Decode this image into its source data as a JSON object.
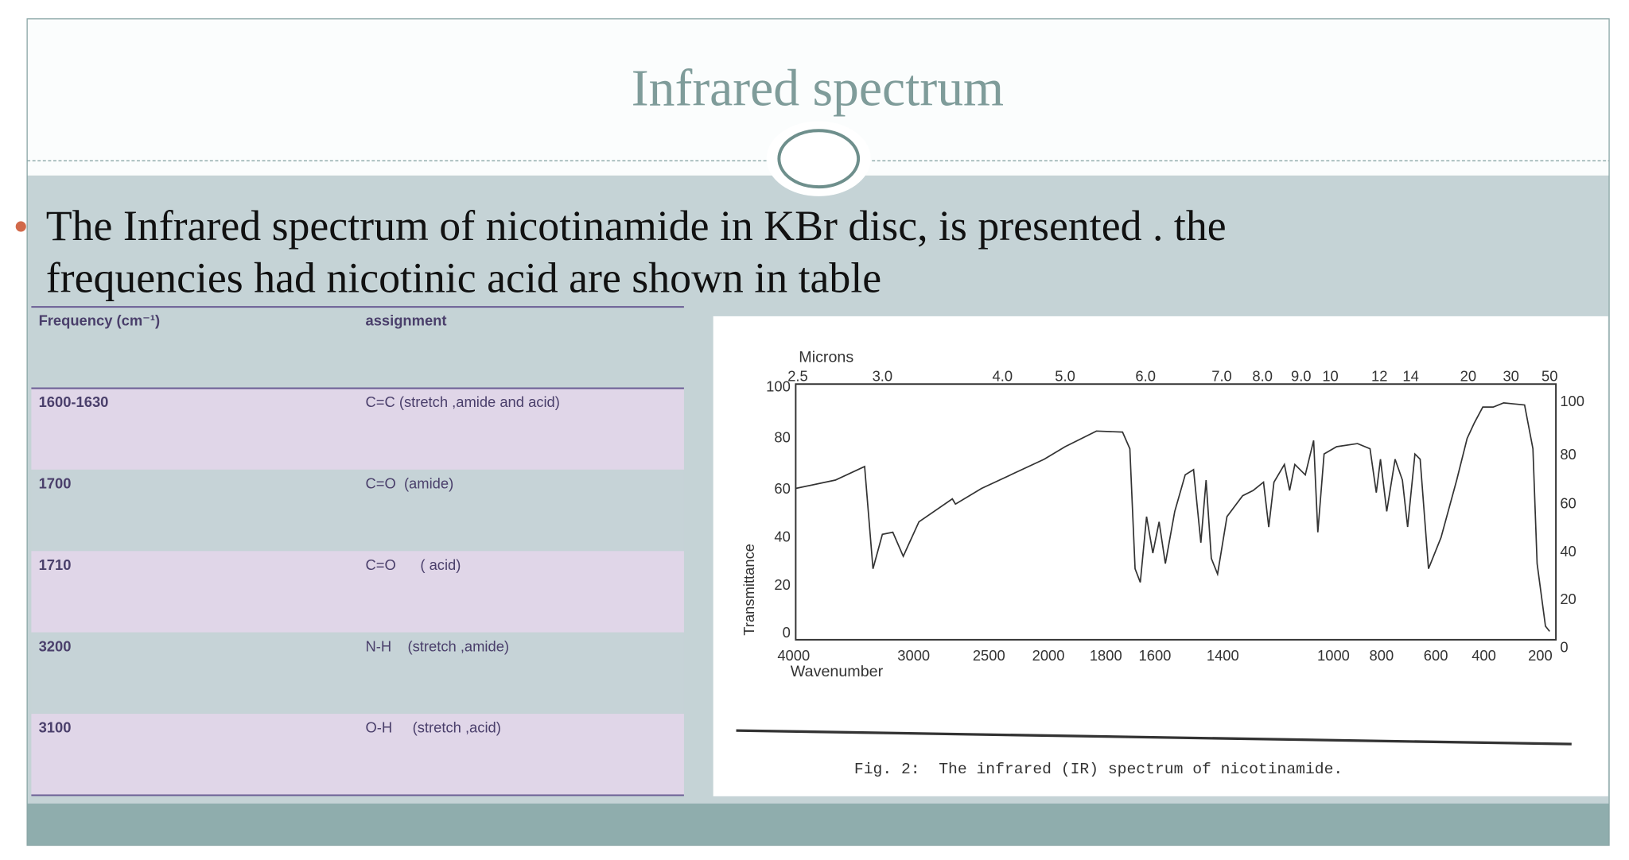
{
  "slide": {
    "title": "Infrared spectrum",
    "bullet_lines": [
      "The Infrared spectrum of nicotinamide in KBr disc, is presented . the",
      "frequencies had nicotinic acid are shown in table"
    ]
  },
  "table": {
    "header": [
      "Frequency (cm⁻¹)",
      "assignment"
    ],
    "rows": [
      [
        "1600-1630",
        "C=C (stretch ,amide and acid)"
      ],
      [
        "1700",
        "C=O  (amide)"
      ],
      [
        "1710",
        "C=O      ( acid)"
      ],
      [
        "3200",
        "N-H    (stretch ,amide)"
      ],
      [
        "3100",
        "O-H     (stretch ,acid)"
      ]
    ]
  },
  "figure": {
    "microns_label": "Microns",
    "microns_ticks": [
      "2.5",
      "3.0",
      "4.0",
      "5.0",
      "6.0",
      "7.0",
      "8.0",
      "9.0",
      "10",
      "12",
      "14",
      "20",
      "30",
      "50"
    ],
    "wavenumber_ticks": [
      "4000",
      "3000",
      "2500",
      "2000",
      "1800",
      "1600",
      "1400",
      "1000",
      "800",
      "600",
      "400",
      "200"
    ],
    "left_ticks": [
      "100",
      "80",
      "60",
      "40",
      "20",
      "0"
    ],
    "right_ticks": [
      "100",
      "80",
      "60",
      "40",
      "20",
      "0"
    ],
    "y_label": "Transmittance",
    "x_label": "Wavenumber",
    "caption": "Fig. 2:  The infrared (IR) spectrum of nicotinamide."
  }
}
